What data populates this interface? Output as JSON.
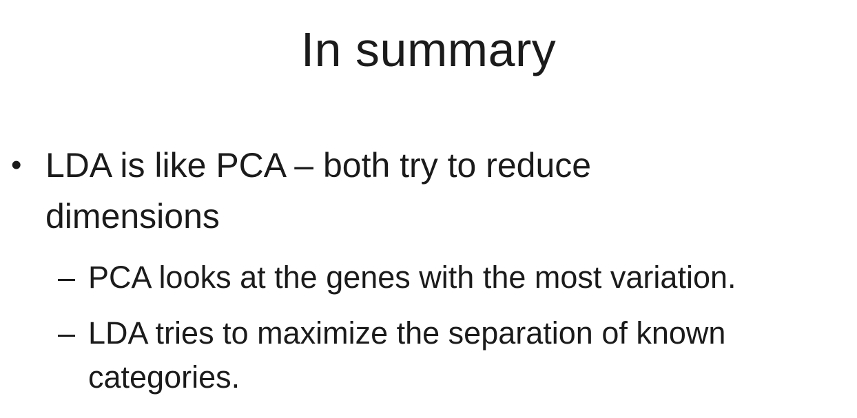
{
  "slide": {
    "title": "In summary",
    "bullets": [
      {
        "marker": "•",
        "text": "LDA is like PCA – both try to reduce dimensions",
        "sub_items": [
          {
            "marker": "–",
            "text": "PCA looks at the genes with the most variation."
          },
          {
            "marker": "–",
            "text": "LDA tries to maximize the separation of known categories."
          }
        ]
      }
    ]
  }
}
